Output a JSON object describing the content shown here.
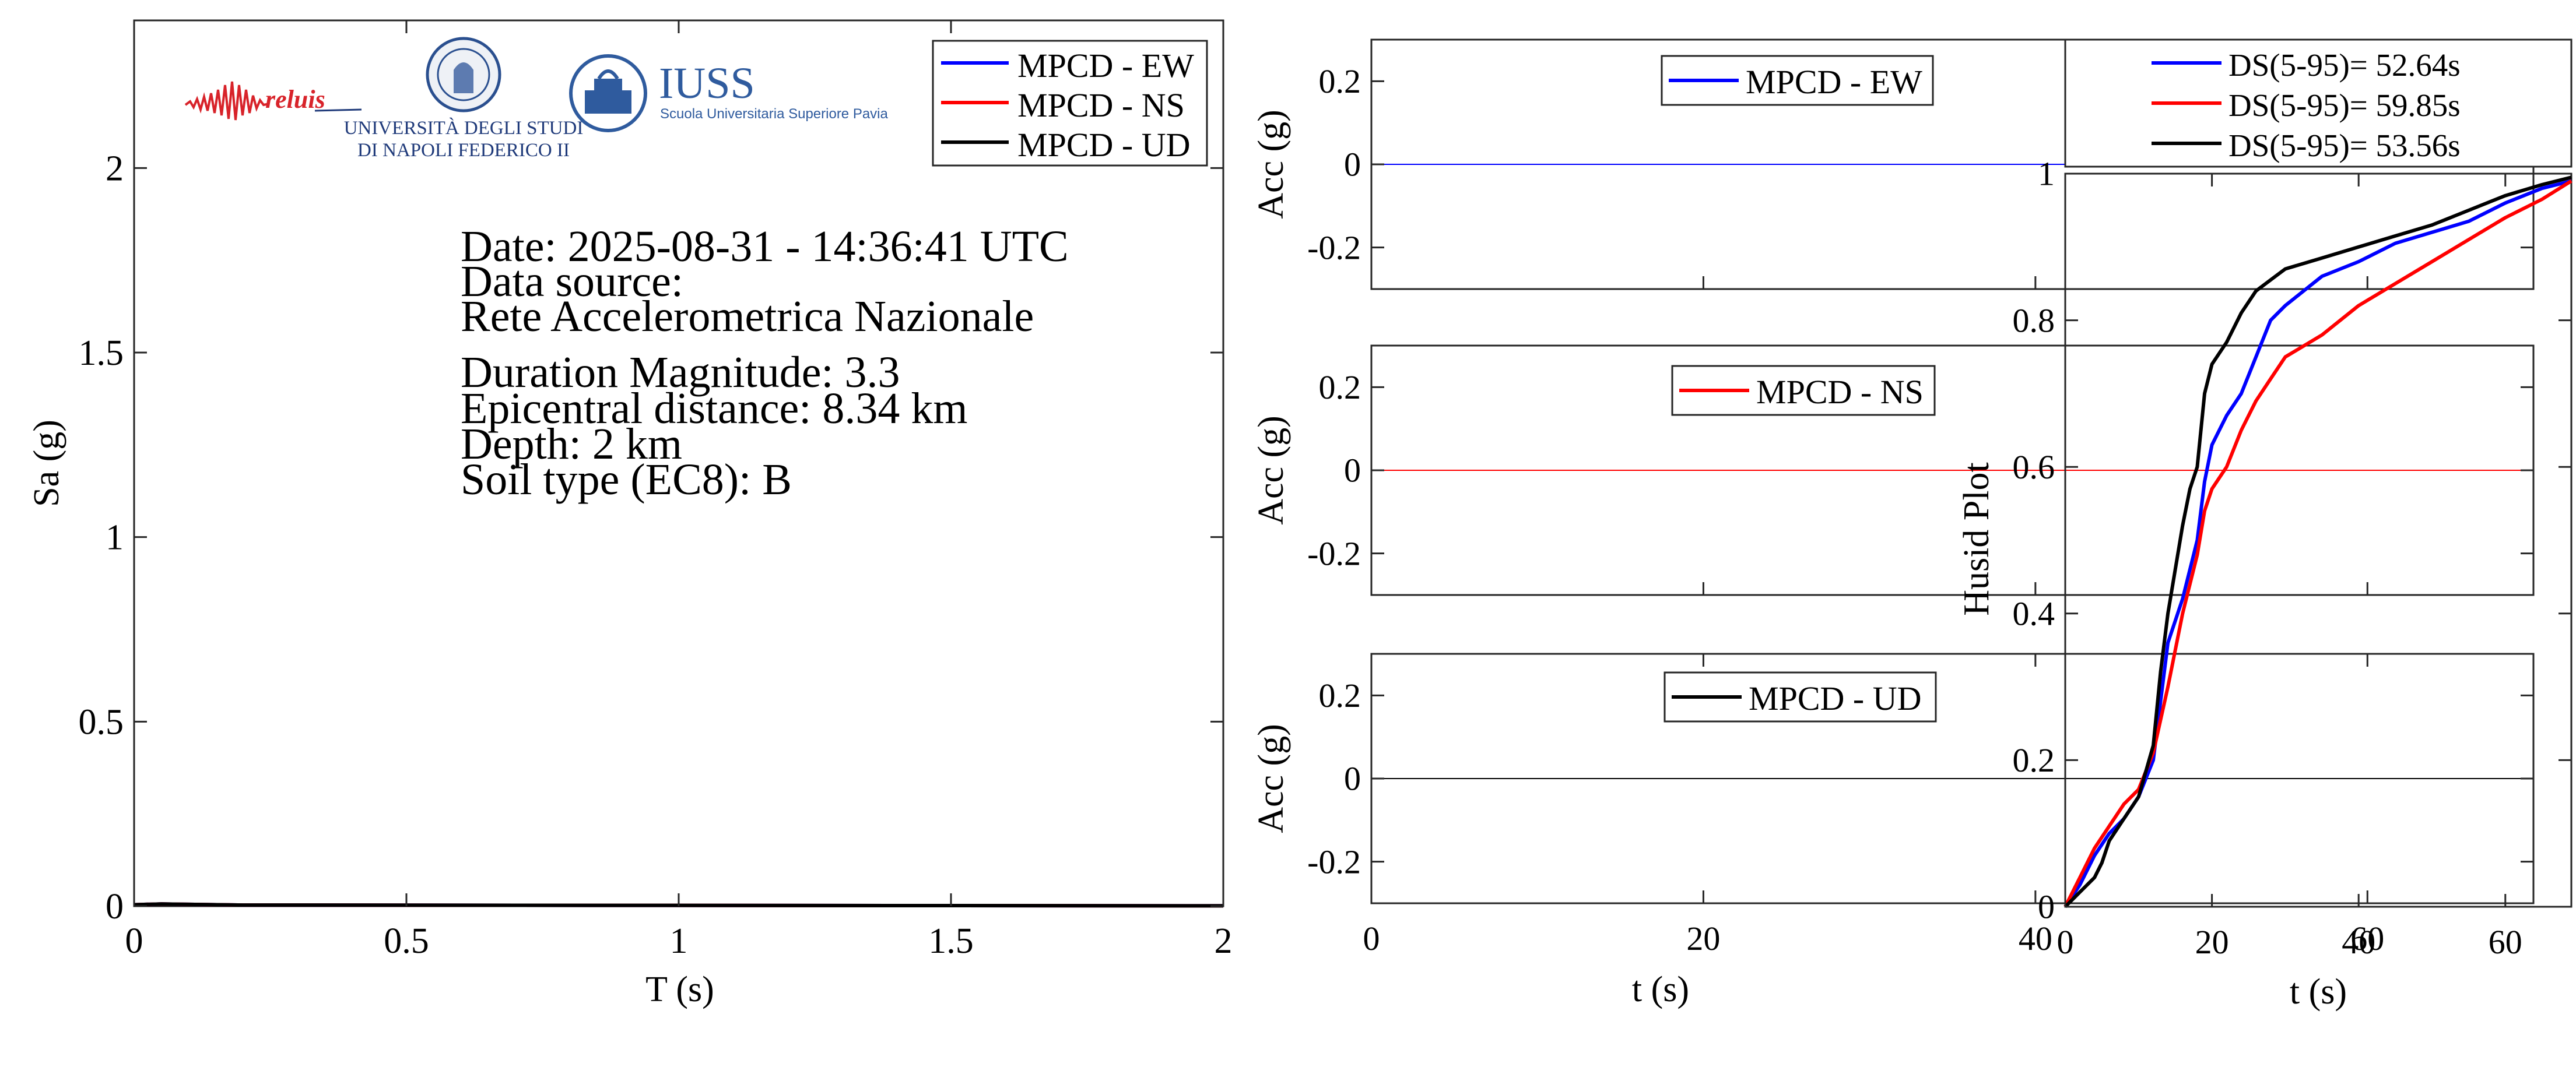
{
  "info": {
    "lines": [
      "Date: 2025-08-31 - 14:36:41 UTC",
      "Data source:",
      "Rete Accelerometrica Nazionale",
      "Duration Magnitude: 3.3",
      "Epicentral distance: 8.34 km",
      "Depth: 2 km",
      "Soil type (EC8): B"
    ]
  },
  "logos": {
    "reluis": "reluis",
    "unina_line1": "UNIVERSITÀ DEGLI STUDI",
    "unina_line2": "DI NAPOLI FEDERICO II",
    "iuss_title": "IUSS",
    "iuss_subtitle": "Scuola Universitaria Superiore Pavia"
  },
  "colors": {
    "ew": "#0000ff",
    "ns": "#ff0000",
    "ud": "#000000"
  },
  "chart_data": [
    {
      "type": "line",
      "xlabel": "T (s)",
      "ylabel": "Sa (g)",
      "xlim": [
        0,
        2
      ],
      "ylim": [
        0,
        2.4
      ],
      "xticks": [
        0,
        0.5,
        1,
        1.5,
        2
      ],
      "xtick_labels": [
        "0",
        "0.5",
        "1",
        "1.5",
        "2"
      ],
      "yticks": [
        0,
        0.5,
        1,
        1.5,
        2
      ],
      "ytick_labels": [
        "0",
        "0.5",
        "1",
        "1.5",
        "2"
      ],
      "legend_position": "top-right",
      "grid": false,
      "series": [
        {
          "name": "MPCD - EW",
          "color": "#0000ff",
          "x": [
            0,
            0.05,
            0.2,
            2
          ],
          "y": [
            0.004,
            0.006,
            0.003,
            0.001
          ]
        },
        {
          "name": "MPCD - NS",
          "color": "#ff0000",
          "x": [
            0,
            0.05,
            0.2,
            2
          ],
          "y": [
            0.004,
            0.006,
            0.003,
            0.001
          ]
        },
        {
          "name": "MPCD - UD",
          "color": "#000000",
          "x": [
            0,
            0.05,
            0.2,
            2
          ],
          "y": [
            0.004,
            0.006,
            0.003,
            0.001
          ]
        }
      ]
    },
    {
      "type": "line",
      "xlabel": "",
      "ylabel": "Acc (g)",
      "xlim": [
        0,
        70
      ],
      "ylim": [
        -0.3,
        0.3
      ],
      "yticks": [
        -0.2,
        0,
        0.2
      ],
      "ytick_labels": [
        "-0.2",
        "0",
        "0.2"
      ],
      "legend_position": "top-right",
      "series": [
        {
          "name": "MPCD - EW",
          "color": "#0000ff",
          "x": [
            0,
            70
          ],
          "y": [
            0,
            0
          ]
        }
      ]
    },
    {
      "type": "line",
      "xlabel": "",
      "ylabel": "Acc (g)",
      "xlim": [
        0,
        70
      ],
      "ylim": [
        -0.3,
        0.3
      ],
      "yticks": [
        -0.2,
        0,
        0.2
      ],
      "ytick_labels": [
        "-0.2",
        "0",
        "0.2"
      ],
      "legend_position": "top-right",
      "series": [
        {
          "name": "MPCD - NS",
          "color": "#ff0000",
          "x": [
            0,
            70
          ],
          "y": [
            0,
            0
          ]
        }
      ]
    },
    {
      "type": "line",
      "xlabel": "t (s)",
      "ylabel": "Acc (g)",
      "xlim": [
        0,
        70
      ],
      "ylim": [
        -0.3,
        0.3
      ],
      "xticks": [
        0,
        20,
        40,
        60
      ],
      "xtick_labels": [
        "0",
        "20",
        "40",
        "60"
      ],
      "yticks": [
        -0.2,
        0,
        0.2
      ],
      "ytick_labels": [
        "-0.2",
        "0",
        "0.2"
      ],
      "legend_position": "top-right",
      "series": [
        {
          "name": "MPCD - UD",
          "color": "#000000",
          "x": [
            0,
            70
          ],
          "y": [
            0,
            0
          ]
        }
      ]
    },
    {
      "type": "line",
      "xlabel": "t (s)",
      "ylabel": "Husid Plot",
      "xlim": [
        0,
        69
      ],
      "ylim": [
        0,
        1
      ],
      "xticks": [
        0,
        20,
        40,
        60
      ],
      "xtick_labels": [
        "0",
        "20",
        "40",
        "60"
      ],
      "yticks": [
        0,
        0.2,
        0.4,
        0.6,
        0.8,
        1
      ],
      "ytick_labels": [
        "0",
        "0.2",
        "0.4",
        "0.6",
        "0.8",
        "1"
      ],
      "legend_position": "above",
      "series": [
        {
          "name": "DS(5-95)= 52.64s",
          "color": "#0000ff",
          "x": [
            0,
            2,
            4,
            6,
            8,
            10,
            12,
            13,
            14,
            16,
            18,
            19,
            20,
            22,
            24,
            26,
            28,
            30,
            35,
            40,
            45,
            50,
            55,
            60,
            65,
            69
          ],
          "y": [
            0,
            0.03,
            0.07,
            0.1,
            0.12,
            0.15,
            0.2,
            0.28,
            0.36,
            0.42,
            0.5,
            0.58,
            0.63,
            0.67,
            0.7,
            0.75,
            0.8,
            0.82,
            0.86,
            0.88,
            0.905,
            0.92,
            0.935,
            0.96,
            0.98,
            0.99
          ]
        },
        {
          "name": "DS(5-95)= 59.85s",
          "color": "#ff0000",
          "x": [
            0,
            2,
            4,
            6,
            8,
            10,
            12,
            14,
            16,
            18,
            19,
            20,
            22,
            24,
            26,
            28,
            30,
            35,
            40,
            45,
            50,
            55,
            60,
            65,
            69
          ],
          "y": [
            0,
            0.04,
            0.08,
            0.11,
            0.14,
            0.16,
            0.21,
            0.3,
            0.4,
            0.48,
            0.54,
            0.57,
            0.6,
            0.65,
            0.69,
            0.72,
            0.75,
            0.78,
            0.82,
            0.85,
            0.88,
            0.91,
            0.94,
            0.965,
            0.99
          ]
        },
        {
          "name": "DS(5-95)= 53.56s",
          "color": "#000000",
          "x": [
            0,
            2,
            4,
            5,
            6,
            8,
            10,
            12,
            13,
            14,
            16,
            17,
            18,
            19,
            20,
            22,
            24,
            26,
            28,
            30,
            35,
            40,
            45,
            50,
            55,
            60,
            65,
            69
          ],
          "y": [
            0,
            0.02,
            0.04,
            0.06,
            0.09,
            0.12,
            0.15,
            0.22,
            0.32,
            0.4,
            0.52,
            0.57,
            0.6,
            0.7,
            0.74,
            0.77,
            0.81,
            0.84,
            0.855,
            0.87,
            0.885,
            0.9,
            0.915,
            0.93,
            0.95,
            0.97,
            0.985,
            0.995
          ]
        }
      ]
    }
  ]
}
